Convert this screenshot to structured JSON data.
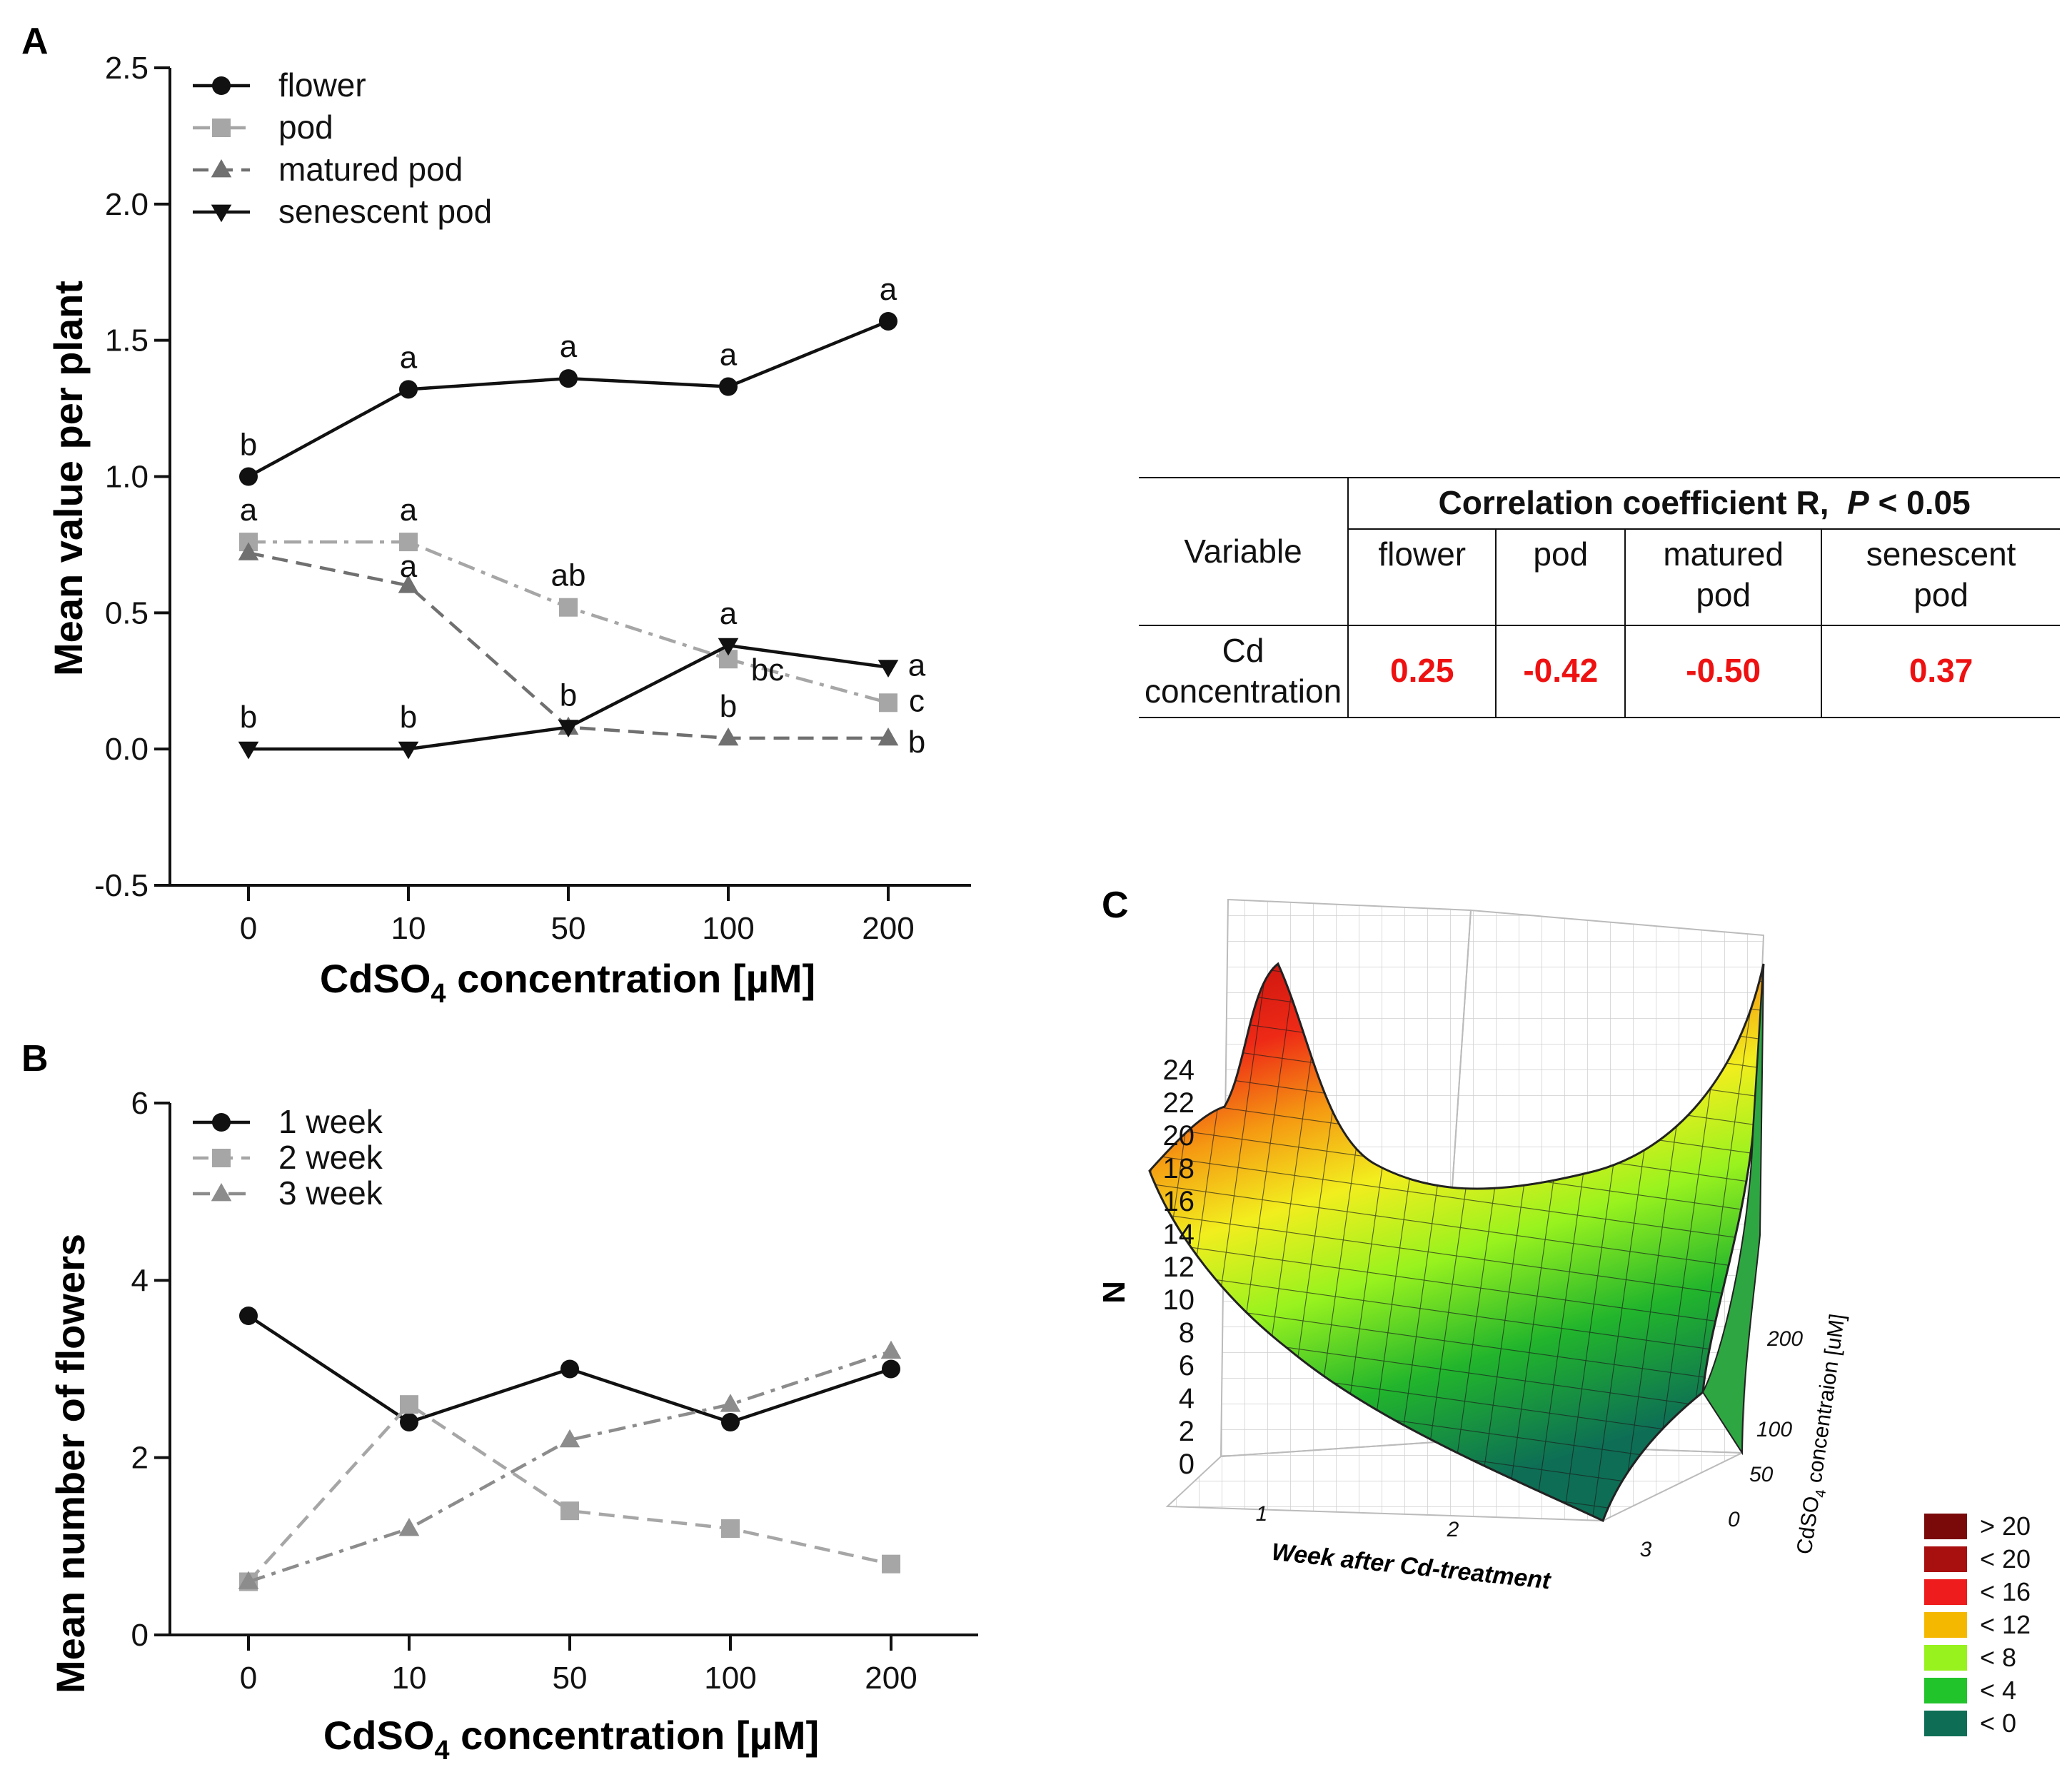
{
  "chart_data": [
    {
      "panel": "A",
      "type": "line",
      "xlabel": "CdSO4 concentration [µM]",
      "xlabel_main": "CdSO",
      "xlabel_sub": "4",
      "xlabel_rest": " concentration [µM]",
      "ylabel": "Mean value per plant",
      "ylim": [
        -0.5,
        2.5
      ],
      "yticks": [
        "-0.5",
        "0.0",
        "0.5",
        "1.0",
        "1.5",
        "2.0",
        "2.5"
      ],
      "ytick_values": [
        -0.5,
        0,
        0.5,
        1,
        1.5,
        2,
        2.5
      ],
      "categories": [
        "0",
        "10",
        "50",
        "100",
        "200"
      ],
      "legend": "top-left",
      "series": [
        {
          "name": "flower",
          "values": [
            1.0,
            1.32,
            1.36,
            1.33,
            1.57
          ],
          "letters": [
            "b",
            "a",
            "a",
            "a",
            "a"
          ],
          "color": "#111111",
          "marker": "circle",
          "dash": "solid"
        },
        {
          "name": "pod",
          "values": [
            0.76,
            0.76,
            0.52,
            0.33,
            0.17
          ],
          "letters": [
            "a",
            "a",
            "ab",
            "bc",
            "c"
          ],
          "color": "#a6a6a6",
          "marker": "square",
          "dash": "dashdot"
        },
        {
          "name": "matured pod",
          "values": [
            0.72,
            0.6,
            0.08,
            0.04,
            0.04
          ],
          "letters": [
            "",
            "a",
            "b",
            "b",
            "b"
          ],
          "color": "#707070",
          "marker": "triangle",
          "dash": "dashed"
        },
        {
          "name": "senescent pod",
          "values": [
            0.0,
            0.0,
            0.08,
            0.38,
            0.3
          ],
          "letters": [
            "b",
            "b",
            "",
            "a",
            "a"
          ],
          "color": "#111111",
          "marker": "triangle-down",
          "dash": "solid"
        }
      ]
    },
    {
      "panel": "B",
      "type": "line",
      "xlabel": "CdSO4 concentration [µM]",
      "xlabel_main": "CdSO",
      "xlabel_sub": "4",
      "xlabel_rest": " concentration [µM]",
      "ylabel": "Mean number of flowers",
      "ylim": [
        0,
        6
      ],
      "yticks": [
        "0",
        "2",
        "4",
        "6"
      ],
      "ytick_values": [
        0,
        2,
        4,
        6
      ],
      "categories": [
        "0",
        "10",
        "50",
        "100",
        "200"
      ],
      "legend": "top-left",
      "series": [
        {
          "name": "1 week",
          "values": [
            3.6,
            2.4,
            3.0,
            2.4,
            3.0
          ],
          "color": "#111111",
          "marker": "circle",
          "dash": "solid"
        },
        {
          "name": "2 week",
          "values": [
            0.6,
            2.6,
            1.4,
            1.2,
            0.8
          ],
          "color": "#a6a6a6",
          "marker": "square",
          "dash": "dashed"
        },
        {
          "name": "3 week",
          "values": [
            0.6,
            1.2,
            2.2,
            2.6,
            3.2
          ],
          "color": "#8c8c8c",
          "marker": "triangle",
          "dash": "dashdot"
        }
      ]
    },
    {
      "panel": "C",
      "type": "surface",
      "zlabel": "N",
      "xlabel": "Week after Cd-treatment",
      "ylabel_main": "CdSO",
      "ylabel_sub": "4",
      "ylabel_rest": " concentraion [uM]",
      "zticks": [
        "0",
        "2",
        "4",
        "6",
        "8",
        "10",
        "12",
        "14",
        "16",
        "18",
        "20",
        "22",
        "24"
      ],
      "xticks": [
        "1",
        "2",
        "3"
      ],
      "yticks": [
        "0",
        "50",
        "100",
        "200"
      ],
      "legend": [
        {
          "label": "> 20",
          "color": "#7a0a0a"
        },
        {
          "label": "< 20",
          "color": "#a80f0f"
        },
        {
          "label": "< 16",
          "color": "#ee1c1c"
        },
        {
          "label": "< 12",
          "color": "#f5b800"
        },
        {
          "label": "< 8",
          "color": "#98f21e"
        },
        {
          "label": "< 4",
          "color": "#22c42c"
        },
        {
          "label": "< 0",
          "color": "#0d6e55"
        }
      ]
    }
  ],
  "panel_labels": {
    "a": "A",
    "b": "B",
    "c": "C"
  },
  "correlation_table": {
    "variable_header": "Variable",
    "title": "Correlation coefficient R,",
    "p_label": "P",
    "p_value": " < 0.05",
    "col_flower": "flower",
    "col_pod": "pod",
    "col_matured_1": "matured",
    "col_matured_2": "pod",
    "col_senescent_1": "senescent",
    "col_senescent_2": "pod",
    "row_label": "Cd concentration",
    "v_flower": "0.25",
    "v_pod": "-0.42",
    "v_matured": "-0.50",
    "v_senescent": "0.37"
  }
}
